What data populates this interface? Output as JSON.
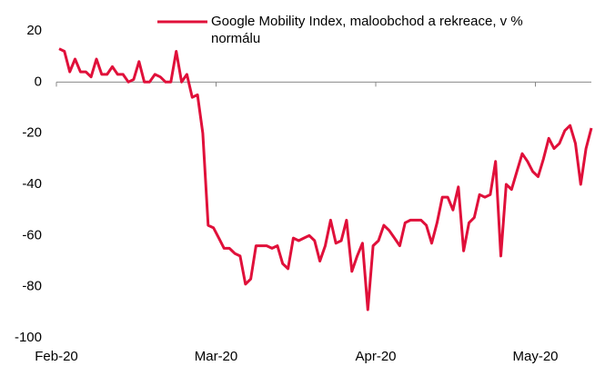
{
  "chart_data": {
    "type": "line",
    "categories": [
      "Feb-20",
      null,
      null,
      null,
      null,
      null,
      null,
      null,
      null,
      null,
      null,
      null,
      null,
      null,
      null,
      null,
      null,
      null,
      null,
      null,
      null,
      null,
      null,
      null,
      null,
      null,
      null,
      null,
      null,
      null,
      "Mar-20",
      null,
      null,
      null,
      null,
      null,
      null,
      null,
      null,
      null,
      null,
      null,
      null,
      null,
      null,
      null,
      null,
      null,
      null,
      null,
      null,
      null,
      null,
      null,
      null,
      null,
      null,
      null,
      null,
      null,
      "Apr-20",
      null,
      null,
      null,
      null,
      null,
      null,
      null,
      null,
      null,
      null,
      null,
      null,
      null,
      null,
      null,
      null,
      null,
      null,
      null,
      null,
      null,
      null,
      null,
      null,
      null,
      null,
      null,
      null,
      null,
      "May-20",
      null,
      null,
      null,
      null,
      null,
      null,
      null,
      null,
      null,
      null
    ],
    "series": [
      {
        "name": "Google Mobility Index, maloobchod a rekreace, v % normálu",
        "color": "#e0103a",
        "values": [
          13,
          12,
          4,
          9,
          4,
          4,
          2,
          9,
          3,
          3,
          6,
          3,
          3,
          0,
          1,
          8,
          0,
          0,
          3,
          2,
          0,
          0,
          12,
          0,
          3,
          -6,
          -5,
          -20,
          -56,
          -57,
          -61,
          -65,
          -65,
          -67,
          -68,
          -79,
          -77,
          -64,
          -64,
          -64,
          -65,
          -64,
          -71,
          -73,
          -61,
          -62,
          -61,
          -60,
          -62,
          -70,
          -64,
          -54,
          -63,
          -62,
          -54,
          -74,
          -68,
          -63,
          -89,
          -64,
          -62,
          -56,
          -58,
          -61,
          -64,
          -55,
          -54,
          -54,
          -54,
          -56,
          -63,
          -55,
          -45,
          -45,
          -50,
          -41,
          -66,
          -55,
          -53,
          -44,
          -45,
          -44,
          -31,
          -68,
          -40,
          -42,
          -35,
          -28,
          -31,
          -35,
          -37,
          -30,
          -22,
          -26,
          -24,
          -19,
          -17,
          -24,
          -40,
          -26,
          -18
        ]
      }
    ],
    "ylim": [
      -100,
      20
    ],
    "yticks": [
      -100,
      -80,
      -60,
      -40,
      -20,
      0,
      20
    ],
    "legend": "top"
  }
}
